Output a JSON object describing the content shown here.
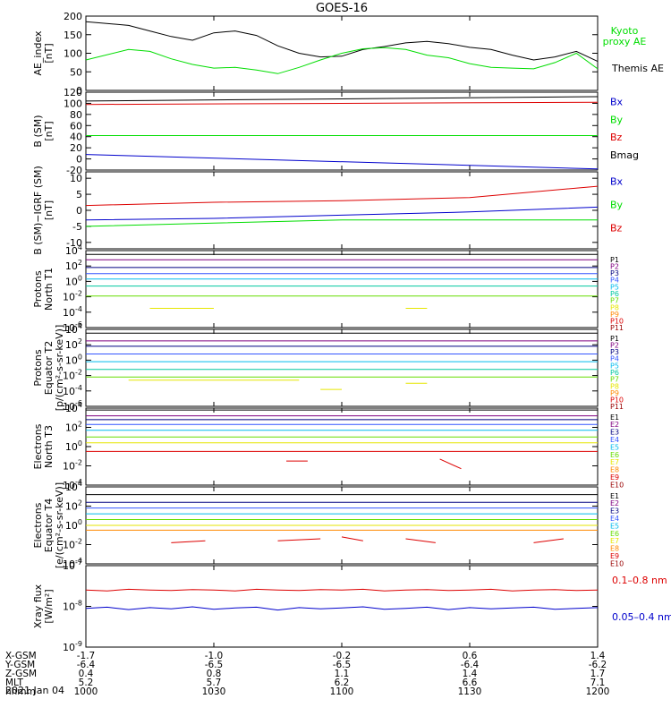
{
  "title": "GOES-16",
  "colors": {
    "black": "#000000",
    "green": "#00dd00",
    "red": "#dd0000",
    "blue": "#0000cc",
    "navy": "#000080",
    "purple": "#800080",
    "royal": "#3355ff",
    "cyan": "#00bbee",
    "teal": "#00c8a0",
    "lime": "#66dd00",
    "yellow": "#e6e600",
    "gold": "#e6b800",
    "orange": "#ff8800",
    "darkred": "#990000"
  },
  "footer": {
    "rows": [
      {
        "label": "X-GSM",
        "values": [
          "-1.7",
          "-1.0",
          "-0.2",
          "0.6",
          "1.4"
        ]
      },
      {
        "label": "Y-GSM",
        "values": [
          "-6.4",
          "-6.5",
          "-6.5",
          "-6.4",
          "-6.2"
        ]
      },
      {
        "label": "Z-GSM",
        "values": [
          "0.4",
          "0.8",
          "1.1",
          "1.4",
          "1.7"
        ]
      },
      {
        "label": "MLT",
        "values": [
          "5.2",
          "5.7",
          "6.2",
          "6.6",
          "7.1"
        ]
      },
      {
        "label": "hhmm",
        "values": [
          "1000",
          "1030",
          "1100",
          "1130",
          "1200"
        ]
      }
    ],
    "date": "2021 Jan 04"
  },
  "chart_data": [
    {
      "id": "ae",
      "type": "line",
      "ylabel": [
        "AE_index",
        "[nT]"
      ],
      "ylim": [
        0,
        200
      ],
      "yticks": [
        "0",
        "50",
        "100",
        "150",
        "200"
      ],
      "legend": [
        {
          "text": "Kyoto",
          "color": "green"
        },
        {
          "text": "proxy AE",
          "color": "green"
        },
        {
          "text": "Themis AE",
          "color": "black"
        }
      ],
      "x_minutes": [
        0,
        10,
        15,
        20,
        25,
        30,
        35,
        40,
        45,
        50,
        55,
        60,
        65,
        70,
        75,
        80,
        85,
        90,
        95,
        100,
        105,
        110,
        115,
        120
      ],
      "series": [
        {
          "name": "Themis AE",
          "color": "black",
          "values": [
            185,
            175,
            160,
            145,
            135,
            155,
            160,
            148,
            120,
            100,
            90,
            92,
            110,
            118,
            128,
            132,
            126,
            116,
            110,
            95,
            82,
            90,
            105,
            78
          ]
        },
        {
          "name": "Kyoto proxy AE",
          "color": "green",
          "values": [
            82,
            110,
            105,
            85,
            70,
            60,
            62,
            55,
            45,
            62,
            82,
            100,
            112,
            115,
            110,
            95,
            88,
            72,
            62,
            60,
            58,
            75,
            100,
            58
          ]
        }
      ]
    },
    {
      "id": "bsm",
      "type": "line",
      "ylabel": [
        "B (SM)",
        "[nT]"
      ],
      "ylim": [
        -20,
        120
      ],
      "yticks": [
        "-20",
        "0",
        "20",
        "40",
        "60",
        "80",
        "100",
        "120"
      ],
      "legend": [
        {
          "text": "Bx",
          "color": "blue"
        },
        {
          "text": "By",
          "color": "green"
        },
        {
          "text": "Bz",
          "color": "red"
        },
        {
          "text": "Bmag",
          "color": "black"
        }
      ],
      "x_minutes": [
        0,
        120
      ],
      "series": [
        {
          "name": "Bmag",
          "color": "black",
          "values": [
            104,
            112
          ]
        },
        {
          "name": "Bz",
          "color": "red",
          "values": [
            98,
            102
          ]
        },
        {
          "name": "By",
          "color": "green",
          "values": [
            42,
            42
          ]
        },
        {
          "name": "Bx",
          "color": "blue",
          "values": [
            8,
            -18
          ]
        }
      ]
    },
    {
      "id": "bigrf",
      "type": "line",
      "ylabel": [
        "B (SM)−IGRF (SM)",
        "[nT]"
      ],
      "ylim": [
        -12,
        12
      ],
      "yticks": [
        "-10",
        "-5",
        "0",
        "5",
        "10"
      ],
      "legend": [
        {
          "text": "Bx",
          "color": "blue"
        },
        {
          "text": "By",
          "color": "green"
        },
        {
          "text": "Bz",
          "color": "red"
        }
      ],
      "x_minutes": [
        0,
        30,
        60,
        90,
        120
      ],
      "series": [
        {
          "name": "Bz",
          "color": "red",
          "values": [
            1.5,
            2.5,
            3.0,
            4.0,
            7.5
          ]
        },
        {
          "name": "By",
          "color": "green",
          "values": [
            -5,
            -4,
            -3,
            -3,
            -3
          ]
        },
        {
          "name": "Bx",
          "color": "blue",
          "values": [
            -3,
            -2.5,
            -1.5,
            -0.5,
            1
          ]
        }
      ]
    },
    {
      "id": "pn",
      "type": "line",
      "log": true,
      "ylabel": [
        "Protons",
        "North T1"
      ],
      "yexp": [
        -6,
        4
      ],
      "yticks": [
        "-6",
        "-4",
        "-2",
        "0",
        "2",
        "4"
      ],
      "legend": [
        {
          "text": "P1",
          "color": "black"
        },
        {
          "text": "P2",
          "color": "purple"
        },
        {
          "text": "P3",
          "color": "navy"
        },
        {
          "text": "P4",
          "color": "royal"
        },
        {
          "text": "P5",
          "color": "cyan"
        },
        {
          "text": "P6",
          "color": "teal"
        },
        {
          "text": "P7",
          "color": "lime"
        },
        {
          "text": "P8",
          "color": "yellow"
        },
        {
          "text": "P9",
          "color": "orange"
        },
        {
          "text": "P10",
          "color": "red"
        },
        {
          "text": "P11",
          "color": "darkred"
        }
      ],
      "series": [
        {
          "name": "P1",
          "color": "black",
          "values": [
            3.5
          ]
        },
        {
          "name": "P2",
          "color": "purple",
          "values": [
            2.8
          ]
        },
        {
          "name": "P3",
          "color": "navy",
          "values": [
            1.8
          ]
        },
        {
          "name": "P4",
          "color": "royal",
          "values": [
            1.0
          ]
        },
        {
          "name": "P5",
          "color": "cyan",
          "values": [
            0.3
          ]
        },
        {
          "name": "P6",
          "color": "teal",
          "values": [
            -0.6
          ]
        },
        {
          "name": "P7",
          "color": "lime",
          "values": [
            -1.9
          ]
        },
        {
          "name": "P8",
          "color": "yellow",
          "segments": [
            [
              15,
              30,
              -3.5
            ],
            [
              75,
              80,
              -3.5
            ]
          ]
        }
      ]
    },
    {
      "id": "pe",
      "type": "line",
      "log": true,
      "ylabel": [
        "Protons",
        "Equator T2",
        "[p/(cm²-s-sr-keV)]"
      ],
      "yexp": [
        -6,
        4
      ],
      "yticks": [
        "-6",
        "-4",
        "-2",
        "0",
        "2",
        "4"
      ],
      "legend": [
        {
          "text": "P1",
          "color": "black"
        },
        {
          "text": "P2",
          "color": "purple"
        },
        {
          "text": "P3",
          "color": "navy"
        },
        {
          "text": "P4",
          "color": "royal"
        },
        {
          "text": "P5",
          "color": "cyan"
        },
        {
          "text": "P6",
          "color": "teal"
        },
        {
          "text": "P7",
          "color": "lime"
        },
        {
          "text": "P8",
          "color": "yellow"
        },
        {
          "text": "P9",
          "color": "orange"
        },
        {
          "text": "P10",
          "color": "red"
        },
        {
          "text": "P11",
          "color": "darkred"
        }
      ],
      "series": [
        {
          "name": "P1",
          "color": "black",
          "values": [
            3.5
          ]
        },
        {
          "name": "P2",
          "color": "purple",
          "values": [
            2.5
          ]
        },
        {
          "name": "P3",
          "color": "navy",
          "values": [
            1.8
          ]
        },
        {
          "name": "P4",
          "color": "royal",
          "values": [
            0.8
          ]
        },
        {
          "name": "P5",
          "color": "cyan",
          "values": [
            -0.2
          ]
        },
        {
          "name": "P6",
          "color": "teal",
          "values": [
            -1.2
          ]
        },
        {
          "name": "P7",
          "color": "lime",
          "values": [
            -2.2
          ]
        },
        {
          "name": "P8",
          "color": "yellow",
          "segments": [
            [
              10,
              50,
              -2.6
            ],
            [
              55,
              60,
              -3.8
            ],
            [
              75,
              80,
              -3.0
            ]
          ]
        }
      ]
    },
    {
      "id": "en",
      "type": "line",
      "log": true,
      "ylabel": [
        "Electrons",
        "North T3"
      ],
      "yexp": [
        -4,
        4
      ],
      "yticks": [
        "-4",
        "-2",
        "0",
        "2",
        "4"
      ],
      "legend": [
        {
          "text": "E1",
          "color": "black"
        },
        {
          "text": "E2",
          "color": "purple"
        },
        {
          "text": "E3",
          "color": "navy"
        },
        {
          "text": "E4",
          "color": "royal"
        },
        {
          "text": "E5",
          "color": "cyan"
        },
        {
          "text": "E6",
          "color": "lime"
        },
        {
          "text": "E7",
          "color": "yellow"
        },
        {
          "text": "E8",
          "color": "orange"
        },
        {
          "text": "E9",
          "color": "red"
        },
        {
          "text": "E10",
          "color": "darkred"
        }
      ],
      "series": [
        {
          "name": "E1",
          "color": "black",
          "values": [
            3.8
          ]
        },
        {
          "name": "E2",
          "color": "purple",
          "values": [
            3.2
          ]
        },
        {
          "name": "E3",
          "color": "navy",
          "values": [
            2.8
          ]
        },
        {
          "name": "E4",
          "color": "royal",
          "values": [
            2.3
          ]
        },
        {
          "name": "E5",
          "color": "cyan",
          "values": [
            1.7
          ]
        },
        {
          "name": "E6",
          "color": "lime",
          "values": [
            1.0
          ]
        },
        {
          "name": "E7",
          "color": "yellow",
          "values": [
            0.4
          ]
        },
        {
          "name": "E8",
          "color": "red",
          "values": [
            -0.5
          ]
        },
        {
          "name": "E9",
          "color": "red",
          "segments": [
            [
              47,
              52,
              -1.5
            ],
            [
              83,
              88,
              -1.3,
              -2.3
            ]
          ]
        }
      ]
    },
    {
      "id": "ee",
      "type": "line",
      "log": true,
      "ylabel": [
        "Electrons",
        "Equator T4",
        "[e/(cm²-s-sr-keV)]"
      ],
      "yexp": [
        -4,
        4
      ],
      "yticks": [
        "-4",
        "-2",
        "0",
        "2",
        "4"
      ],
      "legend": [
        {
          "text": "E1",
          "color": "black"
        },
        {
          "text": "E2",
          "color": "purple"
        },
        {
          "text": "E3",
          "color": "navy"
        },
        {
          "text": "E4",
          "color": "royal"
        },
        {
          "text": "E5",
          "color": "cyan"
        },
        {
          "text": "E6",
          "color": "lime"
        },
        {
          "text": "E7",
          "color": "yellow"
        },
        {
          "text": "E8",
          "color": "orange"
        },
        {
          "text": "E9",
          "color": "red"
        },
        {
          "text": "E10",
          "color": "darkred"
        }
      ],
      "series": [
        {
          "name": "E1",
          "color": "black",
          "values": [
            3.2
          ]
        },
        {
          "name": "E2",
          "color": "navy",
          "values": [
            2.4
          ]
        },
        {
          "name": "E3",
          "color": "royal",
          "values": [
            1.8
          ]
        },
        {
          "name": "E4",
          "color": "cyan",
          "values": [
            1.2
          ]
        },
        {
          "name": "E5",
          "color": "lime",
          "values": [
            0.6
          ]
        },
        {
          "name": "E6",
          "color": "yellow",
          "values": [
            0.0
          ]
        },
        {
          "name": "E7",
          "color": "orange",
          "values": [
            -0.5
          ]
        },
        {
          "name": "E8",
          "color": "red",
          "segments": [
            [
              20,
              28,
              -1.8,
              -1.6
            ],
            [
              45,
              55,
              -1.6,
              -1.4
            ],
            [
              60,
              65,
              -1.2,
              -1.6
            ],
            [
              75,
              82,
              -1.4,
              -1.8
            ],
            [
              105,
              112,
              -1.8,
              -1.4
            ]
          ]
        }
      ]
    },
    {
      "id": "xray",
      "type": "line",
      "log": true,
      "ylabel": [
        "Xray flux",
        "[W/m²]"
      ],
      "yexp": [
        -9,
        -7
      ],
      "yticks": [
        "-9",
        "-8",
        "-7"
      ],
      "legend": [
        {
          "text": "0.1–0.8 nm",
          "color": "red"
        },
        {
          "text": "0.05–0.4 nm",
          "color": "blue"
        }
      ],
      "series": [
        {
          "name": "0.1–0.8 nm",
          "color": "red",
          "values": [
            -7.6,
            -7.62,
            -7.58,
            -7.6,
            -7.61,
            -7.59,
            -7.6,
            -7.62,
            -7.58,
            -7.6,
            -7.61,
            -7.59,
            -7.6,
            -7.58,
            -7.62,
            -7.6,
            -7.59,
            -7.61,
            -7.6,
            -7.58,
            -7.62,
            -7.6,
            -7.59,
            -7.61,
            -7.6
          ]
        },
        {
          "name": "0.05–0.4 nm",
          "color": "blue",
          "values": [
            -8.05,
            -8.02,
            -8.08,
            -8.03,
            -8.06,
            -8.01,
            -8.07,
            -8.04,
            -8.02,
            -8.09,
            -8.03,
            -8.06,
            -8.04,
            -8.01,
            -8.07,
            -8.05,
            -8.02,
            -8.08,
            -8.03,
            -8.06,
            -8.04,
            -8.02,
            -8.07,
            -8.05,
            -8.03
          ]
        }
      ]
    }
  ]
}
